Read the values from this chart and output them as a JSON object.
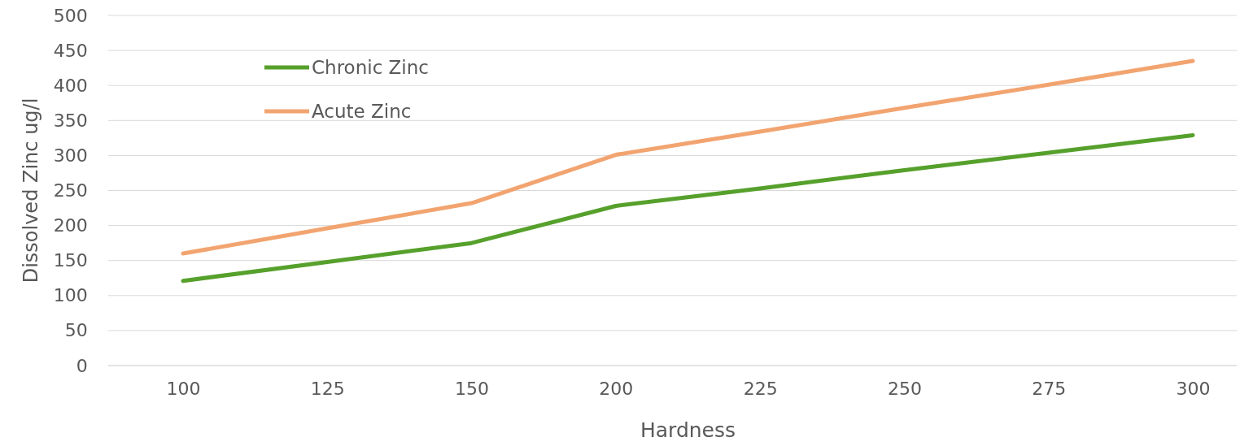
{
  "chart_data": {
    "type": "line",
    "xlabel": "Hardness",
    "ylabel": "Dissolved Zinc ug/l",
    "categories": [
      "100",
      "125",
      "150",
      "200",
      "225",
      "250",
      "275",
      "300"
    ],
    "series": [
      {
        "name": "Chronic Zinc",
        "color": "#56a02c",
        "values": [
          121,
          148,
          175,
          228,
          253,
          279,
          304,
          329
        ]
      },
      {
        "name": "Acute Zinc",
        "color": "#f2a470",
        "values": [
          160,
          196,
          232,
          301,
          334,
          368,
          401,
          435
        ]
      }
    ],
    "ylim": [
      0,
      500
    ],
    "yticks": [
      0,
      50,
      100,
      150,
      200,
      250,
      300,
      350,
      400,
      450,
      500
    ],
    "grid": "y",
    "legend": "top left",
    "marker": "none",
    "line_style": "solid"
  }
}
